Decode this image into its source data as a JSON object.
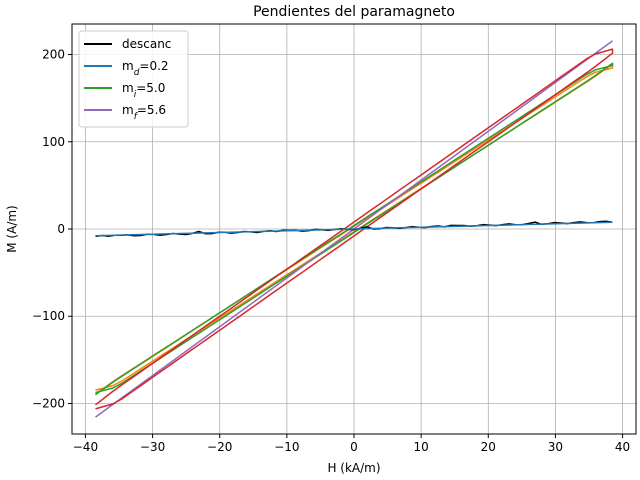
{
  "chart_data": {
    "type": "line",
    "title": "Pendientes del paramagneto",
    "xlabel": "H (kA/m)",
    "ylabel": "M (A/m)",
    "xlim": [
      -42,
      42
    ],
    "ylim": [
      -235,
      235
    ],
    "xticks": [
      -40,
      -30,
      -20,
      -10,
      0,
      10,
      20,
      30,
      40
    ],
    "yticks": [
      -200,
      -100,
      0,
      100,
      200
    ],
    "grid": true,
    "legend_position": "top-left",
    "legend": [
      {
        "label": "descanc",
        "color": "#000000"
      },
      {
        "label": "m",
        "sub": "d",
        "suffix": "=0.2",
        "color": "#1f77b4"
      },
      {
        "label": "m",
        "sub": "i",
        "suffix": "=5.0",
        "color": "#2ca02c"
      },
      {
        "label": "m",
        "sub": "f",
        "suffix": "=5.6",
        "color": "#9467bd"
      }
    ],
    "series": [
      {
        "name": "descanc",
        "color": "#000000",
        "slope": 0.22,
        "x_range": [
          -38.5,
          38.5
        ],
        "kind": "background"
      },
      {
        "name": "m_d=0.2",
        "color": "#1f77b4",
        "slope": 0.2,
        "x_range": [
          -38.5,
          38.5
        ],
        "kind": "fit"
      },
      {
        "name": "m_i=5.0",
        "color": "#2ca02c",
        "slope": 5.0,
        "x_range": [
          -38.5,
          38.5
        ],
        "kind": "loop",
        "loop_offset": 4
      },
      {
        "name": "m_f=5.6",
        "color": "#9467bd",
        "slope": 5.6,
        "x_range": [
          -38.5,
          38.5
        ],
        "kind": "fit"
      },
      {
        "name": "signal-orange",
        "color": "#ff7f0e",
        "slope": 4.95,
        "x_range": [
          -38.5,
          38.5
        ],
        "kind": "loop",
        "loop_offset": 3
      },
      {
        "name": "signal-red",
        "color": "#d62728",
        "slope": 5.4,
        "x_range": [
          -38.5,
          38.5
        ],
        "kind": "loop",
        "loop_offset": 8
      }
    ]
  }
}
